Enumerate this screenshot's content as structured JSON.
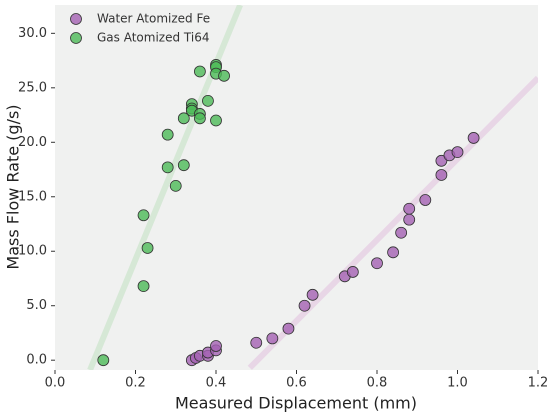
{
  "chart_data": {
    "type": "scatter",
    "x_label": "Measured Displacement (mm)",
    "y_label": "Mass Flow Rate (g/s)",
    "xlim": [
      0,
      1.2
    ],
    "ylim": [
      -0.9,
      32.6
    ],
    "xticks": [
      {
        "value": 0,
        "label": "0.0"
      },
      0.2,
      0.4,
      0.6,
      0.8,
      {
        "value": 1,
        "label": "1.0"
      },
      1.2
    ],
    "yticks": [
      {
        "value": 0,
        "label": "0.0"
      },
      {
        "value": 5,
        "label": "5.0"
      },
      {
        "value": 10,
        "label": "10.0"
      },
      {
        "value": 15,
        "label": "15.0"
      },
      {
        "value": 20,
        "label": "20.0"
      },
      {
        "value": 25,
        "label": "25.0"
      },
      {
        "value": 30,
        "label": "30.0"
      }
    ],
    "legend": "upper left",
    "series": [
      {
        "name": "Water Atomized Fe",
        "color": "#a461b3",
        "x": [
          0.34,
          0.35,
          0.36,
          0.38,
          0.38,
          0.4,
          0.4,
          0.5,
          0.54,
          0.58,
          0.62,
          0.64,
          0.72,
          0.74,
          0.8,
          0.84,
          0.86,
          0.88,
          0.88,
          0.92,
          0.96,
          0.96,
          0.98,
          1.0,
          1.04
        ],
        "values": [
          0.0,
          0.2,
          0.4,
          0.4,
          0.7,
          0.9,
          1.3,
          1.6,
          2.0,
          2.9,
          5.0,
          6.0,
          7.7,
          8.1,
          8.9,
          9.9,
          11.7,
          12.9,
          13.9,
          14.7,
          17.0,
          18.3,
          18.8,
          19.1,
          20.4
        ],
        "fit_x": [
          0.484,
          1.2
        ],
        "fit_y": [
          -0.7,
          25.9
        ],
        "fit_color": "#e8d6e6"
      },
      {
        "name": "Gas Atomized Ti64",
        "color": "#4cba58",
        "x": [
          0.12,
          0.22,
          0.23,
          0.22,
          0.28,
          0.28,
          0.3,
          0.32,
          0.32,
          0.34,
          0.34,
          0.34,
          0.36,
          0.36,
          0.36,
          0.38,
          0.4,
          0.4,
          0.4,
          0.4,
          0.42
        ],
        "values": [
          0.0,
          13.3,
          10.3,
          6.8,
          17.7,
          20.7,
          16.0,
          17.9,
          22.2,
          23.5,
          23.1,
          22.9,
          26.5,
          22.6,
          22.2,
          23.8,
          27.1,
          26.9,
          26.3,
          22.0,
          26.1
        ],
        "fit_x": [
          0.087,
          0.46
        ],
        "fit_y": [
          -0.9,
          32.6
        ],
        "fit_color": "#d6e8d6"
      }
    ]
  }
}
